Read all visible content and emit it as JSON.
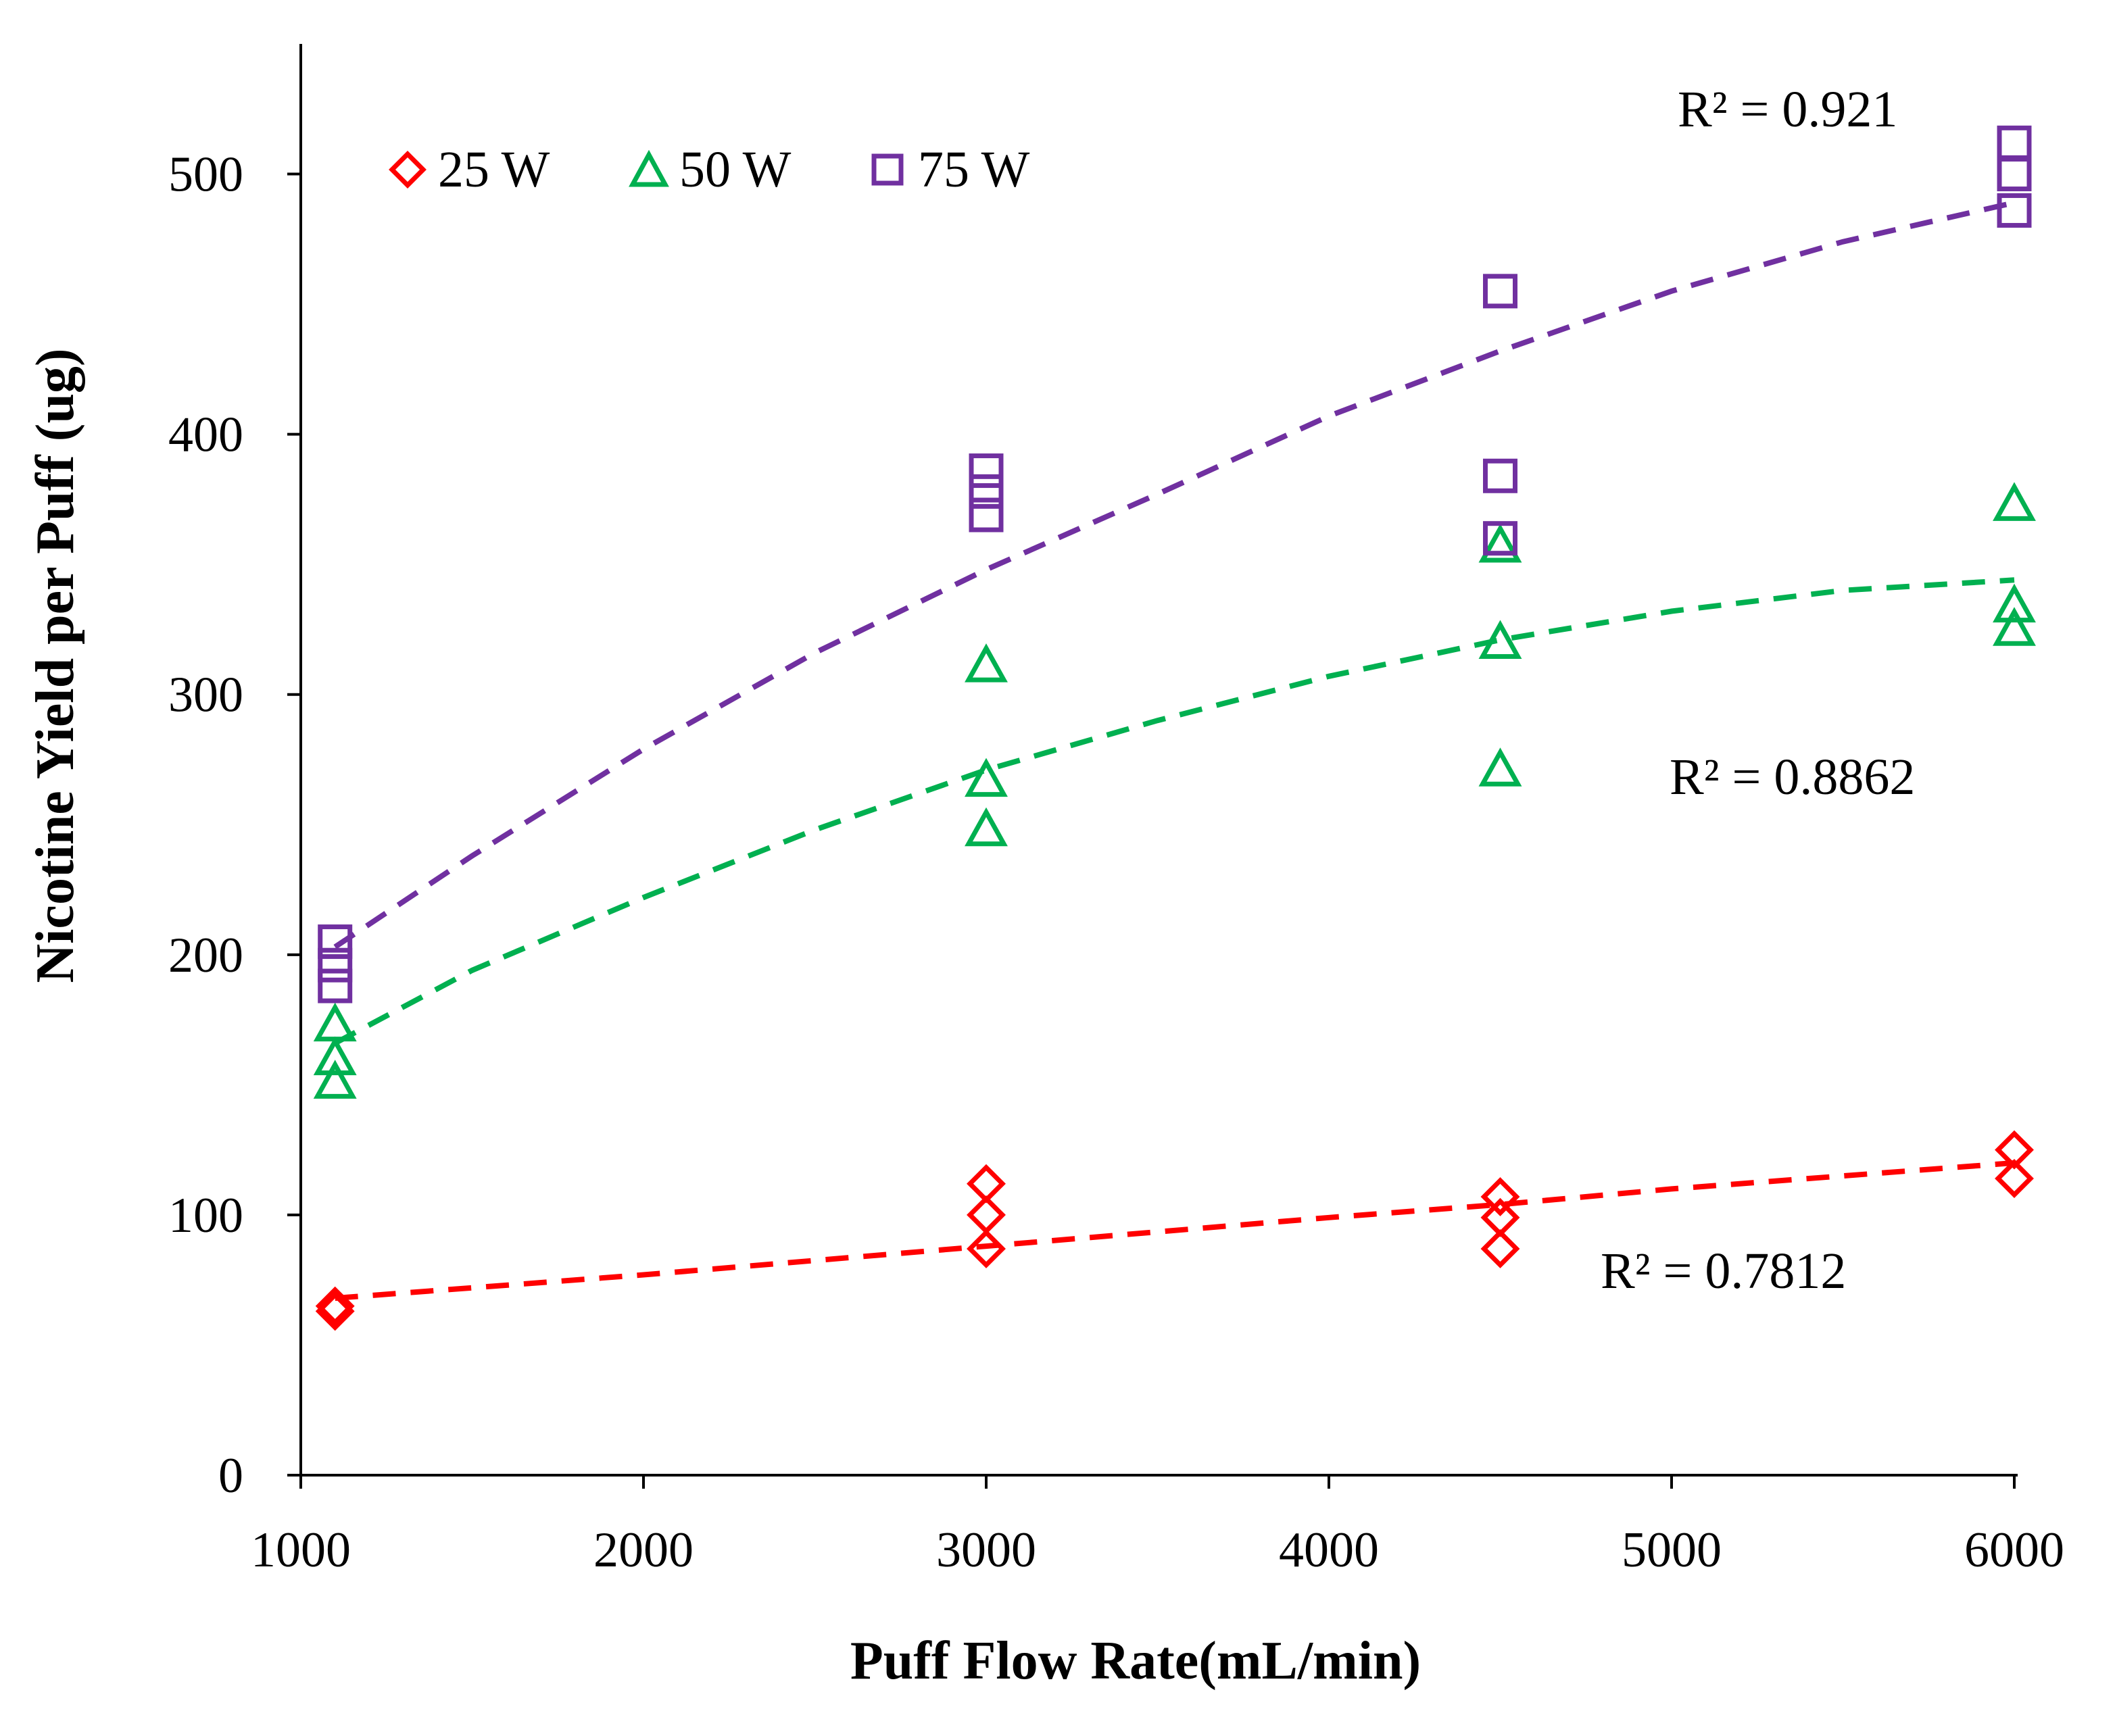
{
  "chart_data": {
    "type": "scatter",
    "title": "",
    "xlabel": "Puff Flow Rate(mL/min)",
    "ylabel": "Nicotine Yield per Puff (ug)",
    "xlim": [
      1000,
      6000
    ],
    "ylim": [
      0,
      550
    ],
    "x_ticks": [
      1000,
      2000,
      3000,
      4000,
      5000,
      6000
    ],
    "y_ticks": [
      0,
      100,
      200,
      300,
      400,
      500
    ],
    "x_tick_labels": [
      "1000",
      "2000",
      "3000",
      "4000",
      "5000",
      "6000"
    ],
    "y_tick_labels": [
      "0",
      "100",
      "200",
      "300",
      "400",
      "500"
    ],
    "grid": false,
    "legend_position": "top-left",
    "series": [
      {
        "name": "25 W",
        "marker": "diamond",
        "color": "#ff0000",
        "points": [
          {
            "x": 1100,
            "y": 63
          },
          {
            "x": 1100,
            "y": 65
          },
          {
            "x": 3000,
            "y": 87
          },
          {
            "x": 3000,
            "y": 100
          },
          {
            "x": 3000,
            "y": 112
          },
          {
            "x": 4500,
            "y": 87
          },
          {
            "x": 4500,
            "y": 99
          },
          {
            "x": 4500,
            "y": 107
          },
          {
            "x": 6000,
            "y": 114
          },
          {
            "x": 6000,
            "y": 125
          }
        ],
        "trendline": {
          "x": [
            1100,
            2000,
            3000,
            4000,
            4500,
            5000,
            6000
          ],
          "y": [
            68,
            77,
            88,
            99,
            104,
            110,
            120
          ]
        },
        "r2_label": "R² = 0.7812"
      },
      {
        "name": "50 W",
        "marker": "triangle",
        "color": "#00b050",
        "points": [
          {
            "x": 1100,
            "y": 151
          },
          {
            "x": 1100,
            "y": 160
          },
          {
            "x": 1100,
            "y": 173
          },
          {
            "x": 3000,
            "y": 248
          },
          {
            "x": 3000,
            "y": 267
          },
          {
            "x": 3000,
            "y": 311
          },
          {
            "x": 4500,
            "y": 271
          },
          {
            "x": 4500,
            "y": 320
          },
          {
            "x": 4500,
            "y": 357
          },
          {
            "x": 6000,
            "y": 325
          },
          {
            "x": 6000,
            "y": 334
          },
          {
            "x": 6000,
            "y": 373
          }
        ],
        "trendline": {
          "x": [
            1100,
            1500,
            2000,
            2500,
            3000,
            3500,
            4000,
            4500,
            5000,
            5500,
            6000
          ],
          "y": [
            166,
            194,
            222,
            248,
            271,
            290,
            307,
            321,
            332,
            340,
            344
          ]
        },
        "r2_label": "R² = 0.8862"
      },
      {
        "name": "75 W",
        "marker": "square",
        "color": "#7030a0",
        "points": [
          {
            "x": 1100,
            "y": 188
          },
          {
            "x": 1100,
            "y": 196
          },
          {
            "x": 1100,
            "y": 205
          },
          {
            "x": 3000,
            "y": 369
          },
          {
            "x": 3000,
            "y": 378
          },
          {
            "x": 3000,
            "y": 386
          },
          {
            "x": 4500,
            "y": 360
          },
          {
            "x": 4500,
            "y": 384
          },
          {
            "x": 4500,
            "y": 455
          },
          {
            "x": 6000,
            "y": 486
          },
          {
            "x": 6000,
            "y": 500
          },
          {
            "x": 6000,
            "y": 512
          }
        ],
        "trendline": {
          "x": [
            1100,
            1500,
            2000,
            2500,
            3000,
            3500,
            4000,
            4500,
            5000,
            5500,
            6000
          ],
          "y": [
            203,
            238,
            279,
            316,
            348,
            377,
            407,
            432,
            455,
            474,
            489
          ]
        },
        "r2_label": "R² = 0.921"
      }
    ]
  }
}
